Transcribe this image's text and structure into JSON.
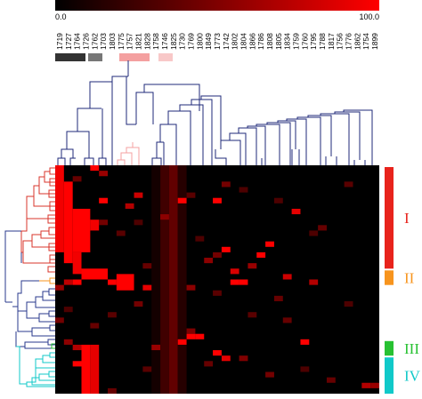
{
  "scale": {
    "min_label": "0.0",
    "max_label": "100.0",
    "colors": [
      "#000000",
      "#ff0000"
    ]
  },
  "columns": [
    "1719",
    "1727",
    "1764",
    "1726",
    "1762",
    "1703",
    "1803",
    "1775",
    "1757",
    "1821",
    "1828",
    "1758",
    "1746",
    "1825",
    "1730",
    "1769",
    "1800",
    "1849",
    "1773",
    "1742",
    "1802",
    "1804",
    "1866",
    "1786",
    "1808",
    "1805",
    "1834",
    "1759",
    "1760",
    "1795",
    "1788",
    "1817",
    "1756",
    "1776",
    "1862",
    "1754",
    "1899"
  ],
  "group_bars": [
    {
      "name": "group-bar-1",
      "color": "#333333"
    },
    {
      "name": "group-bar-2",
      "color": "#777777"
    },
    {
      "name": "group-bar-3",
      "color": "#f4a0a0"
    },
    {
      "name": "group-bar-4",
      "color": "#f8c8c8"
    }
  ],
  "clusters": [
    {
      "label": "I",
      "color": "#e8231c",
      "rows": [
        0,
        18
      ]
    },
    {
      "label": "II",
      "color": "#f7941d",
      "rows": [
        19,
        21
      ]
    },
    {
      "label": "III",
      "color": "#27c132",
      "rows": [
        32,
        34
      ]
    },
    {
      "label": "IV",
      "color": "#10c9c9",
      "rows": [
        35,
        41
      ]
    }
  ],
  "dendrogram_colors": {
    "top": "#1f2a7a",
    "pink": "#f4a0a0",
    "red": "#d9342b",
    "orange": "#f7941d",
    "blue": "#2a3a8c",
    "green": "#27c132",
    "cyan": "#10c9c9"
  },
  "heatmap": {
    "rows": 42,
    "cols": 37,
    "blocks": [
      {
        "c0": 0,
        "c1": 0,
        "r0": 0,
        "r1": 15,
        "v": 95
      },
      {
        "c0": 1,
        "c1": 1,
        "r0": 3,
        "r1": 17,
        "v": 100
      },
      {
        "c0": 2,
        "c1": 3,
        "r0": 8,
        "r1": 15,
        "v": 100
      },
      {
        "c0": 2,
        "c1": 2,
        "r0": 16,
        "r1": 19,
        "v": 95
      },
      {
        "c0": 3,
        "c1": 5,
        "r0": 19,
        "r1": 20,
        "v": 100
      },
      {
        "c0": 4,
        "c1": 4,
        "r0": 10,
        "r1": 11,
        "v": 95
      },
      {
        "c0": 4,
        "c1": 4,
        "r0": 0,
        "r1": 0,
        "v": 100
      },
      {
        "c0": 7,
        "c1": 8,
        "r0": 20,
        "r1": 22,
        "v": 100
      },
      {
        "c0": 3,
        "c1": 3,
        "r0": 33,
        "r1": 41,
        "v": 100
      },
      {
        "c0": 4,
        "c1": 4,
        "r0": 33,
        "r1": 41,
        "v": 90
      },
      {
        "c0": 12,
        "c1": 12,
        "r0": 0,
        "r1": 41,
        "v": 25
      },
      {
        "c0": 13,
        "c1": 13,
        "r0": 0,
        "r1": 41,
        "v": 38
      },
      {
        "c0": 14,
        "c1": 14,
        "r0": 0,
        "r1": 41,
        "v": 15
      },
      {
        "c0": 11,
        "c1": 11,
        "r0": 0,
        "r1": 41,
        "v": 8
      }
    ],
    "cells": [
      {
        "r": 1,
        "c": 5,
        "v": 60
      },
      {
        "r": 2,
        "c": 2,
        "v": 40
      },
      {
        "r": 3,
        "c": 19,
        "v": 45
      },
      {
        "r": 4,
        "c": 21,
        "v": 30
      },
      {
        "r": 5,
        "c": 9,
        "v": 80
      },
      {
        "r": 5,
        "c": 15,
        "v": 35
      },
      {
        "r": 6,
        "c": 5,
        "v": 100
      },
      {
        "r": 6,
        "c": 14,
        "v": 100
      },
      {
        "r": 6,
        "c": 18,
        "v": 100
      },
      {
        "r": 7,
        "c": 8,
        "v": 70
      },
      {
        "r": 8,
        "c": 27,
        "v": 90
      },
      {
        "r": 9,
        "c": 12,
        "v": 55
      },
      {
        "r": 10,
        "c": 5,
        "v": 45
      },
      {
        "r": 11,
        "c": 30,
        "v": 40
      },
      {
        "r": 12,
        "c": 7,
        "v": 35
      },
      {
        "r": 13,
        "c": 16,
        "v": 30
      },
      {
        "r": 14,
        "c": 24,
        "v": 100
      },
      {
        "r": 15,
        "c": 19,
        "v": 100
      },
      {
        "r": 16,
        "c": 23,
        "v": 100
      },
      {
        "r": 16,
        "c": 18,
        "v": 45
      },
      {
        "r": 17,
        "c": 17,
        "v": 55
      },
      {
        "r": 18,
        "c": 22,
        "v": 60
      },
      {
        "r": 18,
        "c": 10,
        "v": 40
      },
      {
        "r": 19,
        "c": 20,
        "v": 85
      },
      {
        "r": 20,
        "c": 26,
        "v": 80
      },
      {
        "r": 21,
        "c": 1,
        "v": 75
      },
      {
        "r": 21,
        "c": 2,
        "v": 100
      },
      {
        "r": 21,
        "c": 6,
        "v": 100
      },
      {
        "r": 21,
        "c": 20,
        "v": 100
      },
      {
        "r": 21,
        "c": 21,
        "v": 100
      },
      {
        "r": 21,
        "c": 29,
        "v": 70
      },
      {
        "r": 22,
        "c": 0,
        "v": 60
      },
      {
        "r": 22,
        "c": 10,
        "v": 90
      },
      {
        "r": 22,
        "c": 15,
        "v": 55
      },
      {
        "r": 23,
        "c": 18,
        "v": 35
      },
      {
        "r": 24,
        "c": 25,
        "v": 40
      },
      {
        "r": 25,
        "c": 9,
        "v": 45
      },
      {
        "r": 26,
        "c": 1,
        "v": 30
      },
      {
        "r": 27,
        "c": 22,
        "v": 35
      },
      {
        "r": 28,
        "c": 0,
        "v": 45
      },
      {
        "r": 29,
        "c": 4,
        "v": 40
      },
      {
        "r": 30,
        "c": 15,
        "v": 50
      },
      {
        "r": 31,
        "c": 15,
        "v": 100
      },
      {
        "r": 31,
        "c": 16,
        "v": 100
      },
      {
        "r": 32,
        "c": 28,
        "v": 100
      },
      {
        "r": 32,
        "c": 1,
        "v": 55
      },
      {
        "r": 32,
        "c": 14,
        "v": 100
      },
      {
        "r": 33,
        "c": 2,
        "v": 70
      },
      {
        "r": 33,
        "c": 11,
        "v": 60
      },
      {
        "r": 34,
        "c": 18,
        "v": 100
      },
      {
        "r": 35,
        "c": 19,
        "v": 90
      },
      {
        "r": 35,
        "c": 21,
        "v": 50
      },
      {
        "r": 36,
        "c": 2,
        "v": 100
      },
      {
        "r": 36,
        "c": 17,
        "v": 40
      },
      {
        "r": 37,
        "c": 10,
        "v": 35
      },
      {
        "r": 38,
        "c": 24,
        "v": 45
      },
      {
        "r": 39,
        "c": 31,
        "v": 40
      },
      {
        "r": 40,
        "c": 35,
        "v": 70
      },
      {
        "r": 40,
        "c": 36,
        "v": 60
      },
      {
        "r": 41,
        "c": 6,
        "v": 40
      },
      {
        "r": 3,
        "c": 33,
        "v": 35
      },
      {
        "r": 12,
        "c": 29,
        "v": 30
      },
      {
        "r": 25,
        "c": 33,
        "v": 30
      },
      {
        "r": 28,
        "c": 26,
        "v": 40
      },
      {
        "r": 10,
        "c": 9,
        "v": 30
      },
      {
        "r": 27,
        "c": 6,
        "v": 35
      },
      {
        "r": 6,
        "c": 25,
        "v": 30
      },
      {
        "r": 37,
        "c": 28,
        "v": 30
      }
    ]
  }
}
